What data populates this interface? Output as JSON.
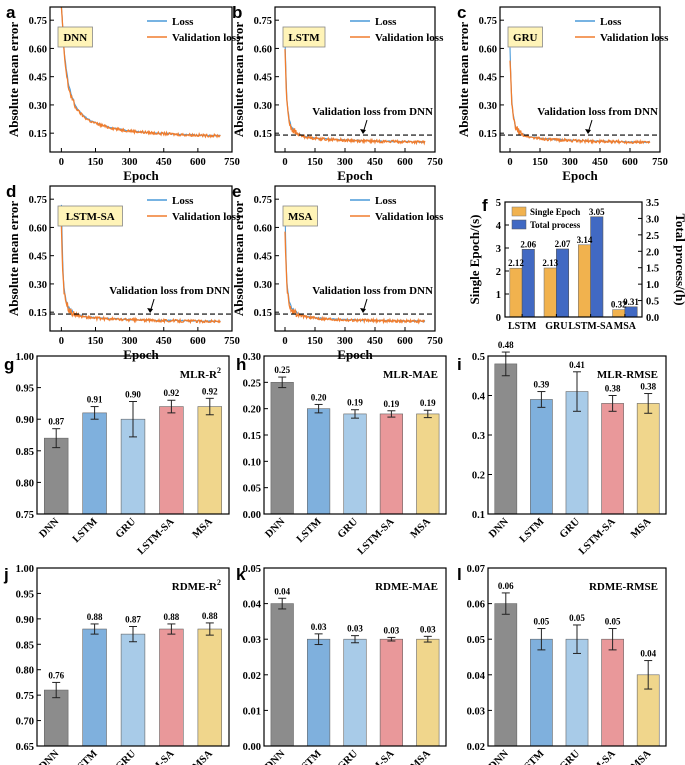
{
  "colors": {
    "loss": "#4a9ad9",
    "val_loss": "#f07d2e",
    "single_epoch": "#f1b24e",
    "total_process": "#4169c3",
    "bars": [
      "#8c8c8c",
      "#7fb0dd",
      "#a8cbe8",
      "#e9989a",
      "#f0d68c"
    ],
    "badge_bg": "#fff4b8"
  },
  "panel_labels": [
    "a",
    "b",
    "c",
    "d",
    "e",
    "f",
    "g",
    "h",
    "i",
    "j",
    "k",
    "l"
  ],
  "chart_data": [
    {
      "type": "line",
      "label": "a",
      "badge": "DNN",
      "xlabel": "",
      "ylabel": "",
      "xlim": [
        -50,
        750
      ],
      "ylim": [
        0.05,
        0.82
      ],
      "xticks": [
        0,
        150,
        300,
        450,
        600,
        750
      ],
      "yticks": [
        0.15,
        0.3,
        0.45,
        0.6,
        0.75
      ],
      "legend": [
        "Loss",
        "Validation loss"
      ],
      "legend_position": "top-right",
      "series": [
        {
          "name": "Loss",
          "x": [
            0,
            5,
            10,
            20,
            30,
            45,
            60,
            80,
            100,
            130,
            160,
            200,
            250,
            300,
            350,
            400,
            450,
            500,
            550,
            600,
            650,
            700
          ],
          "y": [
            0.82,
            0.74,
            0.62,
            0.5,
            0.42,
            0.35,
            0.3,
            0.265,
            0.24,
            0.215,
            0.2,
            0.185,
            0.172,
            0.163,
            0.157,
            0.152,
            0.148,
            0.145,
            0.142,
            0.14,
            0.138,
            0.137
          ]
        },
        {
          "name": "Validation loss",
          "x": [
            0,
            5,
            10,
            20,
            30,
            45,
            60,
            80,
            100,
            130,
            160,
            200,
            250,
            300,
            350,
            400,
            450,
            500,
            550,
            600,
            650,
            700
          ],
          "y": [
            0.82,
            0.73,
            0.6,
            0.48,
            0.4,
            0.34,
            0.29,
            0.26,
            0.235,
            0.212,
            0.198,
            0.183,
            0.17,
            0.162,
            0.156,
            0.151,
            0.147,
            0.144,
            0.141,
            0.139,
            0.137,
            0.136
          ]
        }
      ]
    },
    {
      "type": "line",
      "label": "b",
      "badge": "LSTM",
      "xlabel": "",
      "ylabel": "",
      "xlim": [
        -50,
        750
      ],
      "ylim": [
        0.05,
        0.82
      ],
      "xticks": [
        0,
        150,
        300,
        450,
        600,
        750
      ],
      "yticks": [
        0.15,
        0.3,
        0.45,
        0.6,
        0.75
      ],
      "legend": [
        "Loss",
        "Validation loss"
      ],
      "legend_position": "top-right",
      "reference_line": {
        "y": 0.14,
        "text": "Validation loss from DNN"
      },
      "series": [
        {
          "name": "Loss",
          "x": [
            0,
            5,
            10,
            20,
            30,
            45,
            60,
            80,
            100,
            150,
            200,
            300,
            400,
            500,
            600,
            700
          ],
          "y": [
            0.65,
            0.45,
            0.32,
            0.23,
            0.19,
            0.165,
            0.15,
            0.14,
            0.133,
            0.125,
            0.12,
            0.114,
            0.11,
            0.107,
            0.105,
            0.103
          ]
        },
        {
          "name": "Validation loss",
          "x": [
            0,
            5,
            10,
            20,
            30,
            45,
            60,
            80,
            100,
            150,
            200,
            300,
            400,
            500,
            600,
            700
          ],
          "y": [
            0.6,
            0.42,
            0.3,
            0.22,
            0.18,
            0.16,
            0.146,
            0.137,
            0.13,
            0.123,
            0.118,
            0.112,
            0.108,
            0.106,
            0.104,
            0.102
          ]
        }
      ]
    },
    {
      "type": "line",
      "label": "c",
      "badge": "GRU",
      "xlabel": "Epoch",
      "ylabel": "",
      "xlim": [
        -50,
        750
      ],
      "ylim": [
        0.05,
        0.82
      ],
      "xticks": [
        0,
        150,
        300,
        450,
        600,
        750
      ],
      "yticks": [
        0.15,
        0.3,
        0.45,
        0.6,
        0.75
      ],
      "legend": [
        "Loss",
        "Validation loss"
      ],
      "legend_position": "top-right",
      "reference_line": {
        "y": 0.14,
        "text": "Validation loss from DNN"
      },
      "series": [
        {
          "name": "Loss",
          "x": [
            0,
            5,
            10,
            20,
            30,
            45,
            60,
            80,
            100,
            150,
            200,
            300,
            400,
            500,
            600,
            700
          ],
          "y": [
            0.6,
            0.42,
            0.3,
            0.22,
            0.18,
            0.16,
            0.147,
            0.138,
            0.132,
            0.124,
            0.119,
            0.113,
            0.109,
            0.106,
            0.104,
            0.103
          ]
        },
        {
          "name": "Validation loss",
          "x": [
            0,
            5,
            10,
            20,
            30,
            45,
            60,
            80,
            100,
            150,
            200,
            300,
            400,
            500,
            600,
            700
          ],
          "y": [
            0.55,
            0.4,
            0.29,
            0.21,
            0.175,
            0.155,
            0.143,
            0.135,
            0.129,
            0.121,
            0.116,
            0.111,
            0.107,
            0.105,
            0.103,
            0.102
          ]
        }
      ]
    },
    {
      "type": "line",
      "label": "d",
      "badge": "LSTM-SA",
      "xlabel": "",
      "ylabel": "",
      "xlim": [
        -50,
        750
      ],
      "ylim": [
        0.05,
        0.82
      ],
      "xticks": [
        0,
        150,
        300,
        450,
        600,
        750
      ],
      "yticks": [
        0.15,
        0.3,
        0.45,
        0.6,
        0.75
      ],
      "legend": [
        "Loss",
        "Validation loss"
      ],
      "legend_position": "top-right",
      "reference_line": {
        "y": 0.14,
        "text": "Validation loss from DNN"
      },
      "series": [
        {
          "name": "Loss",
          "x": [
            0,
            5,
            10,
            20,
            30,
            45,
            60,
            80,
            100,
            150,
            200,
            300,
            400,
            500,
            600,
            700
          ],
          "y": [
            0.72,
            0.45,
            0.3,
            0.21,
            0.175,
            0.155,
            0.142,
            0.134,
            0.128,
            0.12,
            0.116,
            0.111,
            0.107,
            0.105,
            0.103,
            0.102
          ]
        },
        {
          "name": "Validation loss",
          "x": [
            0,
            5,
            10,
            20,
            30,
            45,
            60,
            80,
            100,
            150,
            200,
            300,
            400,
            500,
            600,
            700
          ],
          "y": [
            0.6,
            0.4,
            0.28,
            0.2,
            0.17,
            0.15,
            0.138,
            0.131,
            0.125,
            0.118,
            0.114,
            0.109,
            0.106,
            0.104,
            0.102,
            0.101
          ]
        }
      ]
    },
    {
      "type": "line",
      "label": "e",
      "badge": "MSA",
      "xlabel": "Epoch",
      "ylabel": "",
      "xlim": [
        -50,
        750
      ],
      "ylim": [
        0.05,
        0.82
      ],
      "xticks": [
        0,
        150,
        300,
        450,
        600,
        750
      ],
      "yticks": [
        0.15,
        0.3,
        0.45,
        0.6,
        0.75
      ],
      "legend": [
        "Loss",
        "Validation loss"
      ],
      "legend_position": "top-right",
      "reference_line": {
        "y": 0.14,
        "text": "Validation loss from DNN"
      },
      "series": [
        {
          "name": "Loss",
          "x": [
            0,
            5,
            10,
            20,
            30,
            45,
            60,
            80,
            100,
            150,
            200,
            300,
            400,
            500,
            600,
            700
          ],
          "y": [
            0.7,
            0.44,
            0.3,
            0.215,
            0.178,
            0.157,
            0.144,
            0.135,
            0.129,
            0.121,
            0.116,
            0.111,
            0.107,
            0.105,
            0.103,
            0.102
          ]
        },
        {
          "name": "Validation loss",
          "x": [
            0,
            5,
            10,
            20,
            30,
            45,
            60,
            80,
            100,
            150,
            200,
            300,
            400,
            500,
            600,
            700
          ],
          "y": [
            0.58,
            0.4,
            0.28,
            0.2,
            0.17,
            0.15,
            0.139,
            0.131,
            0.126,
            0.118,
            0.114,
            0.109,
            0.106,
            0.104,
            0.102,
            0.101
          ]
        }
      ]
    },
    {
      "type": "bar",
      "label": "f",
      "categories": [
        "LSTM",
        "GRU",
        "LSTM-SA",
        "MSA"
      ],
      "ylabel": "Single Epoch/(s)",
      "y2label": "Total process/(h)",
      "ylim": [
        0,
        5
      ],
      "yticks": [
        0,
        1,
        2,
        3,
        4,
        5
      ],
      "y2lim": [
        0,
        3.5
      ],
      "y2ticks": [
        0.0,
        0.5,
        1.0,
        1.5,
        2.0,
        2.5,
        3.0,
        3.5
      ],
      "legend": [
        "Single Epoch",
        "Total process"
      ],
      "legend_position": "top-left",
      "series": [
        {
          "name": "Single Epoch",
          "axis": "left",
          "values": [
            2.12,
            2.13,
            3.14,
            0.32
          ],
          "labels": [
            "2.12",
            "2.13",
            "3.14",
            "0.32"
          ]
        },
        {
          "name": "Total process",
          "axis": "right",
          "values": [
            2.06,
            2.07,
            3.05,
            0.31
          ],
          "labels": [
            "2.06",
            "2.07",
            "3.05",
            "0.31"
          ]
        }
      ]
    },
    {
      "type": "bar",
      "label": "g",
      "title": "MLR-R",
      "title_sup": "2",
      "categories": [
        "DNN",
        "LSTM",
        "GRU",
        "LSTM-SA",
        "MSA"
      ],
      "values": [
        0.87,
        0.91,
        0.9,
        0.92,
        0.92
      ],
      "errors": [
        0.015,
        0.01,
        0.028,
        0.01,
        0.013
      ],
      "labels": [
        "0.87",
        "0.91",
        "0.90",
        "0.92",
        "0.92"
      ],
      "ylim": [
        0.75,
        1.0
      ],
      "yticks": [
        "0.75",
        "0.80",
        "0.85",
        "0.90",
        "0.95",
        "1.00"
      ]
    },
    {
      "type": "bar",
      "label": "h",
      "title": "MLR-MAE",
      "categories": [
        "DNN",
        "LSTM",
        "GRU",
        "LSTM-SA",
        "MSA"
      ],
      "values": [
        0.25,
        0.2,
        0.19,
        0.19,
        0.19
      ],
      "errors": [
        0.01,
        0.008,
        0.008,
        0.006,
        0.007
      ],
      "labels": [
        "0.25",
        "0.20",
        "0.19",
        "0.19",
        "0.19"
      ],
      "ylim": [
        0.0,
        0.3
      ],
      "yticks": [
        "0.00",
        "0.05",
        "0.10",
        "0.15",
        "0.20",
        "0.25",
        "0.30"
      ]
    },
    {
      "type": "bar",
      "label": "i",
      "title": "MLR-RMSE",
      "categories": [
        "DNN",
        "LSTM",
        "GRU",
        "LSTM-SA",
        "MSA"
      ],
      "values": [
        0.48,
        0.39,
        0.41,
        0.38,
        0.38
      ],
      "errors": [
        0.03,
        0.02,
        0.05,
        0.02,
        0.025
      ],
      "labels": [
        "0.48",
        "0.39",
        "0.41",
        "0.38",
        "0.38"
      ],
      "ylim": [
        0.1,
        0.5
      ],
      "yticks": [
        "0.1",
        "0.2",
        "0.3",
        "0.4",
        "0.5"
      ]
    },
    {
      "type": "bar",
      "label": "j",
      "title": "RDME-R",
      "title_sup": "2",
      "categories": [
        "DNN",
        "LSTM",
        "GRU",
        "LSTM-SA",
        "MSA"
      ],
      "values": [
        0.76,
        0.88,
        0.87,
        0.88,
        0.88
      ],
      "errors": [
        0.015,
        0.01,
        0.015,
        0.01,
        0.012
      ],
      "labels": [
        "0.76",
        "0.88",
        "0.87",
        "0.88",
        "0.88"
      ],
      "ylim": [
        0.65,
        1.0
      ],
      "yticks": [
        "0.65",
        "0.70",
        "0.75",
        "0.80",
        "0.85",
        "0.90",
        "0.95",
        "1.00"
      ]
    },
    {
      "type": "bar",
      "label": "k",
      "title": "RDME-MAE",
      "categories": [
        "DNN",
        "LSTM",
        "GRU",
        "LSTM-SA",
        "MSA"
      ],
      "values": [
        0.04,
        0.03,
        0.03,
        0.03,
        0.03
      ],
      "errors": [
        0.0015,
        0.0015,
        0.001,
        0.0005,
        0.0008
      ],
      "labels": [
        "0.04",
        "0.03",
        "0.03",
        "0.03",
        "0.03"
      ],
      "ylim": [
        0.0,
        0.05
      ],
      "yticks": [
        "0.00",
        "0.01",
        "0.02",
        "0.03",
        "0.04",
        "0.05"
      ]
    },
    {
      "type": "bar",
      "label": "l",
      "title": "RDME-RMSE",
      "categories": [
        "DNN",
        "LSTM",
        "GRU",
        "LSTM-SA",
        "MSA"
      ],
      "values": [
        0.06,
        0.05,
        0.05,
        0.05,
        0.04
      ],
      "errors": [
        0.003,
        0.003,
        0.004,
        0.003,
        0.004
      ],
      "labels": [
        "0.06",
        "0.05",
        "0.05",
        "0.05",
        "0.04"
      ],
      "ylim": [
        0.02,
        0.07
      ],
      "yticks": [
        "0.02",
        "0.03",
        "0.04",
        "0.05",
        "0.06",
        "0.07"
      ]
    }
  ],
  "shared_axis_text": {
    "loss_ylabel": "Absolute mean error",
    "loss_xlabel": "Epoch"
  }
}
